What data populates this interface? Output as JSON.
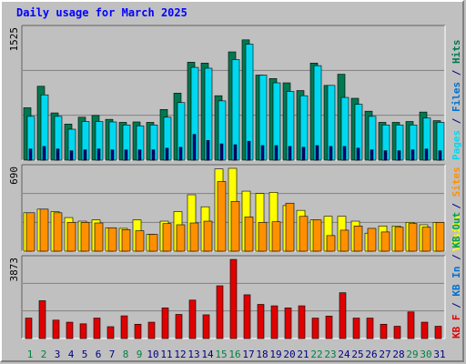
{
  "title": "Daily usage for March 2025",
  "colors": {
    "pages_back": "#007850",
    "pages_front": "#00d8f0",
    "visits": "#ffff00",
    "sites": "#ff9000",
    "kbin": "#0070d0",
    "kbf": "#e00000",
    "weekend": "#008040",
    "weekday": "#000080"
  },
  "chart_data": [
    {
      "type": "bar",
      "title": "Daily usage for March 2025",
      "ymax_label": "1525",
      "legend": [
        {
          "text": "Pages",
          "color": "#00d8f0"
        },
        {
          "text": " / ",
          "color": "#000080"
        },
        {
          "text": "Files",
          "color": "#0070d0"
        },
        {
          "text": " / ",
          "color": "#000080"
        },
        {
          "text": "Hits",
          "color": "#007850"
        }
      ],
      "categories": [
        "1",
        "2",
        "3",
        "4",
        "5",
        "6",
        "7",
        "8",
        "9",
        "10",
        "11",
        "12",
        "13",
        "14",
        "15",
        "16",
        "17",
        "18",
        "19",
        "20",
        "21",
        "22",
        "23",
        "24",
        "25",
        "26",
        "27",
        "28",
        "29",
        "30",
        "31"
      ],
      "series": [
        {
          "name": "Hits",
          "values": [
            610,
            860,
            550,
            420,
            500,
            520,
            475,
            440,
            445,
            440,
            590,
            780,
            1140,
            1130,
            750,
            1260,
            1400,
            990,
            950,
            900,
            810,
            1130,
            870,
            1000,
            720,
            570,
            440,
            440,
            450,
            560,
            460
          ]
        },
        {
          "name": "Files",
          "values": [
            510,
            760,
            510,
            360,
            450,
            450,
            445,
            410,
            400,
            410,
            500,
            670,
            1080,
            1070,
            690,
            1170,
            1350,
            990,
            900,
            800,
            750,
            1100,
            870,
            730,
            650,
            510,
            410,
            410,
            410,
            490,
            440
          ]
        },
        {
          "name": "Pages",
          "values": [
            130,
            160,
            130,
            110,
            120,
            130,
            120,
            120,
            120,
            120,
            140,
            150,
            300,
            230,
            190,
            180,
            220,
            170,
            170,
            160,
            150,
            170,
            160,
            160,
            140,
            120,
            110,
            110,
            120,
            130,
            110
          ]
        }
      ]
    },
    {
      "type": "bar",
      "ymax_label": "690",
      "legend": [
        {
          "text": "Visits",
          "color": "#ffff00"
        },
        {
          "text": " / ",
          "color": "#000080"
        },
        {
          "text": "Sites",
          "color": "#ff9000"
        }
      ],
      "categories": [
        "1",
        "2",
        "3",
        "4",
        "5",
        "6",
        "7",
        "8",
        "9",
        "10",
        "11",
        "12",
        "13",
        "14",
        "15",
        "16",
        "17",
        "18",
        "19",
        "20",
        "21",
        "22",
        "23",
        "24",
        "25",
        "26",
        "27",
        "28",
        "29",
        "30",
        "31"
      ],
      "series": [
        {
          "name": "Visits",
          "values": [
            320,
            350,
            330,
            280,
            250,
            260,
            195,
            190,
            260,
            140,
            250,
            330,
            470,
            370,
            685,
            690,
            500,
            480,
            490,
            380,
            340,
            260,
            290,
            290,
            250,
            150,
            210,
            210,
            240,
            220,
            240
          ]
        },
        {
          "name": "Sites",
          "values": [
            320,
            350,
            320,
            240,
            240,
            235,
            195,
            180,
            170,
            140,
            230,
            220,
            235,
            250,
            580,
            415,
            285,
            240,
            245,
            400,
            290,
            260,
            130,
            175,
            210,
            190,
            160,
            200,
            230,
            200,
            240
          ]
        }
      ]
    },
    {
      "type": "bar",
      "ymax_label": "3873",
      "legend": [
        {
          "text": "KB F",
          "color": "#e00000"
        },
        {
          "text": " / ",
          "color": "#000080"
        },
        {
          "text": "KB In",
          "color": "#0070d0"
        },
        {
          "text": " / ",
          "color": "#000080"
        },
        {
          "text": "KB Out",
          "color": "#00a050"
        }
      ],
      "categories": [
        "1",
        "2",
        "3",
        "4",
        "5",
        "6",
        "7",
        "8",
        "9",
        "10",
        "11",
        "12",
        "13",
        "14",
        "15",
        "16",
        "17",
        "18",
        "19",
        "20",
        "21",
        "22",
        "23",
        "24",
        "25",
        "26",
        "27",
        "28",
        "29",
        "30",
        "31"
      ],
      "series": [
        {
          "name": "KB F",
          "values": [
            1000,
            1850,
            900,
            800,
            720,
            1000,
            580,
            1110,
            700,
            800,
            1500,
            1180,
            1880,
            1160,
            2580,
            3870,
            2140,
            1670,
            1600,
            1500,
            1600,
            1000,
            1100,
            2240,
            1000,
            1000,
            700,
            600,
            1300,
            800,
            600
          ]
        }
      ]
    }
  ],
  "day_labels": [
    "1",
    "2",
    "3",
    "4",
    "5",
    "6",
    "7",
    "8",
    "9",
    "10",
    "11",
    "12",
    "13",
    "14",
    "15",
    "16",
    "17",
    "18",
    "19",
    "20",
    "21",
    "22",
    "23",
    "24",
    "25",
    "26",
    "27",
    "28",
    "29",
    "30",
    "31"
  ],
  "weekend_days": [
    1,
    2,
    8,
    9,
    15,
    16,
    22,
    23,
    29,
    30
  ]
}
